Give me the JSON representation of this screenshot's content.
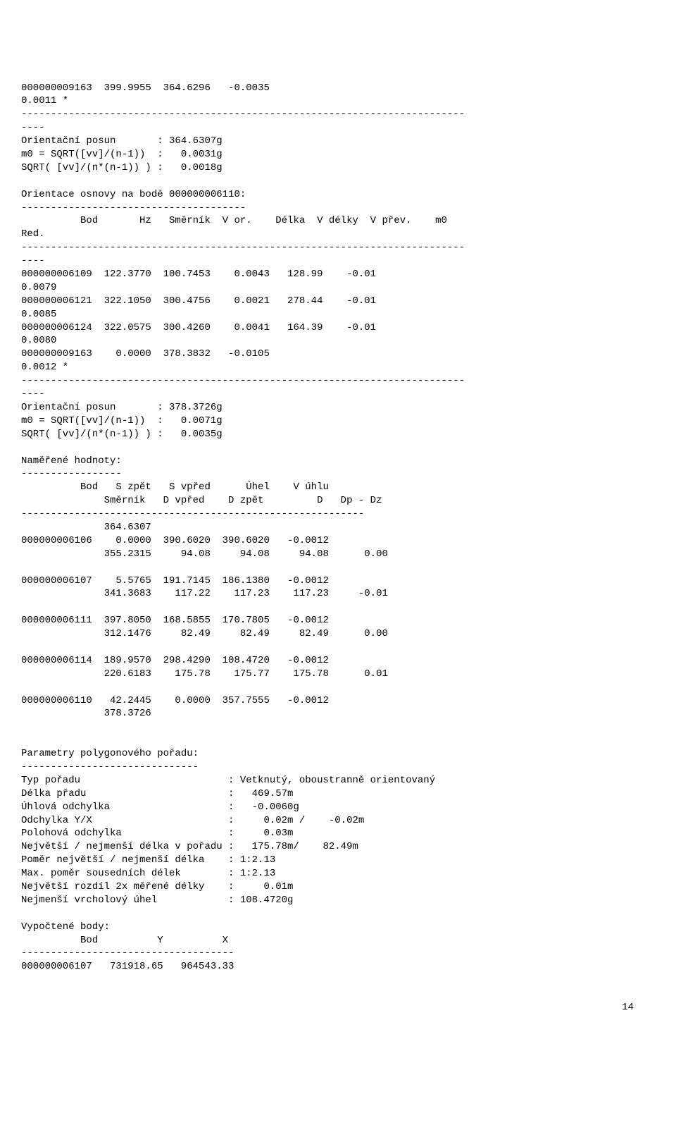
{
  "block1": {
    "l1": "000000009163  399.9955  364.6296   -0.0035",
    "l2": "0.0011 *",
    "sep": "---------------------------------------------------------------------------",
    "sep2": "----",
    "l3": "Orientační posun       : 364.6307g",
    "l4": "m0 = SQRT([vv]/(n-1))  :   0.0031g",
    "l5": "SQRT( [vv]/(n*(n-1)) ) :   0.0018g"
  },
  "block2": {
    "l1": "Orientace osnovy na bodě 000000006110:",
    "l2": "--------------------------------------",
    "l3": "          Bod       Hz   Směrník  V or.    Délka  V délky  V přev.    m0",
    "l4": "Red.",
    "sep": "---------------------------------------------------------------------------",
    "sep2": "----",
    "l5": "000000006109  122.3770  100.7453    0.0043   128.99    -0.01",
    "l6": "0.0079",
    "l7": "000000006121  322.1050  300.4756    0.0021   278.44    -0.01",
    "l8": "0.0085",
    "l9": "000000006124  322.0575  300.4260    0.0041   164.39    -0.01",
    "l10": "0.0080",
    "l11": "000000009163    0.0000  378.3832   -0.0105",
    "l12": "0.0012 *",
    "l13": "Orientační posun       : 378.3726g",
    "l14": "m0 = SQRT([vv]/(n-1))  :   0.0071g",
    "l15": "SQRT( [vv]/(n*(n-1)) ) :   0.0035g"
  },
  "block3": {
    "l1": "Naměřené hodnoty:",
    "l2": "-----------------",
    "l3": "          Bod   S zpět   S vpřed      Úhel    V úhlu",
    "l4": "              Směrník   D vpřed    D zpět         D   Dp - Dz",
    "l5": "----------------------------------------------------------",
    "l6": "              364.6307",
    "l7": "000000006106    0.0000  390.6020  390.6020   -0.0012",
    "l8": "              355.2315     94.08     94.08     94.08      0.00",
    "l9": "000000006107    5.5765  191.7145  186.1380   -0.0012",
    "l10": "              341.3683    117.22    117.23    117.23     -0.01",
    "l11": "000000006111  397.8050  168.5855  170.7805   -0.0012",
    "l12": "              312.1476     82.49     82.49     82.49      0.00",
    "l13": "000000006114  189.9570  298.4290  108.4720   -0.0012",
    "l14": "              220.6183    175.78    175.77    175.78      0.01",
    "l15": "000000006110   42.2445    0.0000  357.7555   -0.0012",
    "l16": "              378.3726"
  },
  "block4": {
    "l1": "Parametry polygonového pořadu:",
    "l2": "------------------------------",
    "l3": "Typ pořadu                         : Vetknutý, oboustranně orientovaný",
    "l4": "Délka přadu                        :   469.57m",
    "l5": "Úhlová odchylka                    :   -0.0060g",
    "l6": "Odchylka Y/X                       :     0.02m /    -0.02m",
    "l7": "Polohová odchylka                  :     0.03m",
    "l8": "Největší / nejmenší délka v pořadu :   175.78m/    82.49m",
    "l9": "Poměr největší / nejmenší délka    : 1:2.13",
    "l10": "Max. poměr sousedních délek        : 1:2.13",
    "l11": "Největší rozdíl 2x měřené délky    :     0.01m",
    "l12": "Nejmenší vrcholový úhel            : 108.4720g"
  },
  "block5": {
    "l1": "Vypočtené body:",
    "l2": "          Bod          Y          X",
    "l3": "------------------------------------",
    "l4": "000000006107   731918.65   964543.33"
  },
  "pagenum": "14"
}
